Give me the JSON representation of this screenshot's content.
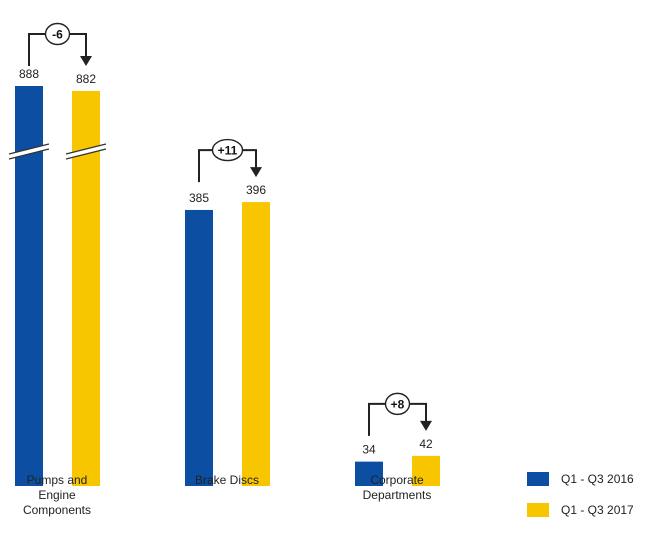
{
  "chart_data": {
    "type": "bar",
    "categories": [
      "Pumps and Engine Components",
      "Brake Discs",
      "Corporate Departments"
    ],
    "category_lines": [
      [
        "Pumps and",
        "Engine",
        "Components"
      ],
      [
        "Brake Discs"
      ],
      [
        "Corporate",
        "Departments"
      ]
    ],
    "series": [
      {
        "name": "Q1 - Q3 2016",
        "color": "#0b4ea2",
        "values": [
          888,
          385,
          34
        ]
      },
      {
        "name": "Q1 - Q3 2017",
        "color": "#f7c600",
        "values": [
          882,
          396,
          42
        ]
      }
    ],
    "data_labels": [
      [
        "888",
        "882"
      ],
      [
        "385",
        "396"
      ],
      [
        "34",
        "42"
      ]
    ],
    "changes": [
      "-6",
      "+11",
      "+8"
    ],
    "axis_break_category": 0,
    "legend_position": "bottom-right",
    "grid": false
  }
}
